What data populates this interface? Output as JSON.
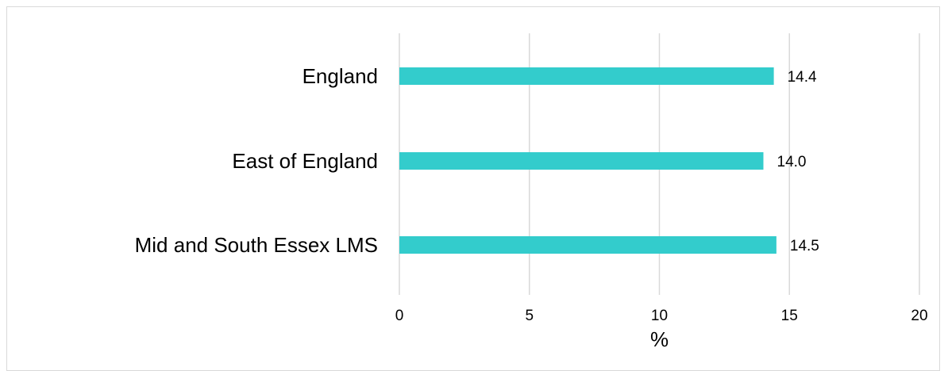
{
  "chart_data": {
    "type": "bar",
    "orientation": "horizontal",
    "title": "",
    "xlabel": "%",
    "ylabel": "",
    "categories": [
      "England",
      "East of England",
      "Mid and South Essex LMS"
    ],
    "values": [
      14.4,
      14.0,
      14.5
    ],
    "value_labels": [
      "14.4",
      "14.0",
      "14.5"
    ],
    "xlim": [
      0,
      20
    ],
    "x_ticks": [
      0,
      5,
      10,
      15,
      20
    ],
    "x_tick_labels": [
      "0",
      "5",
      "10",
      "15",
      "20"
    ],
    "grid": "vertical",
    "legend": "none",
    "bar_color": "#33CCCC",
    "grid_color": "#D9D9D9"
  }
}
